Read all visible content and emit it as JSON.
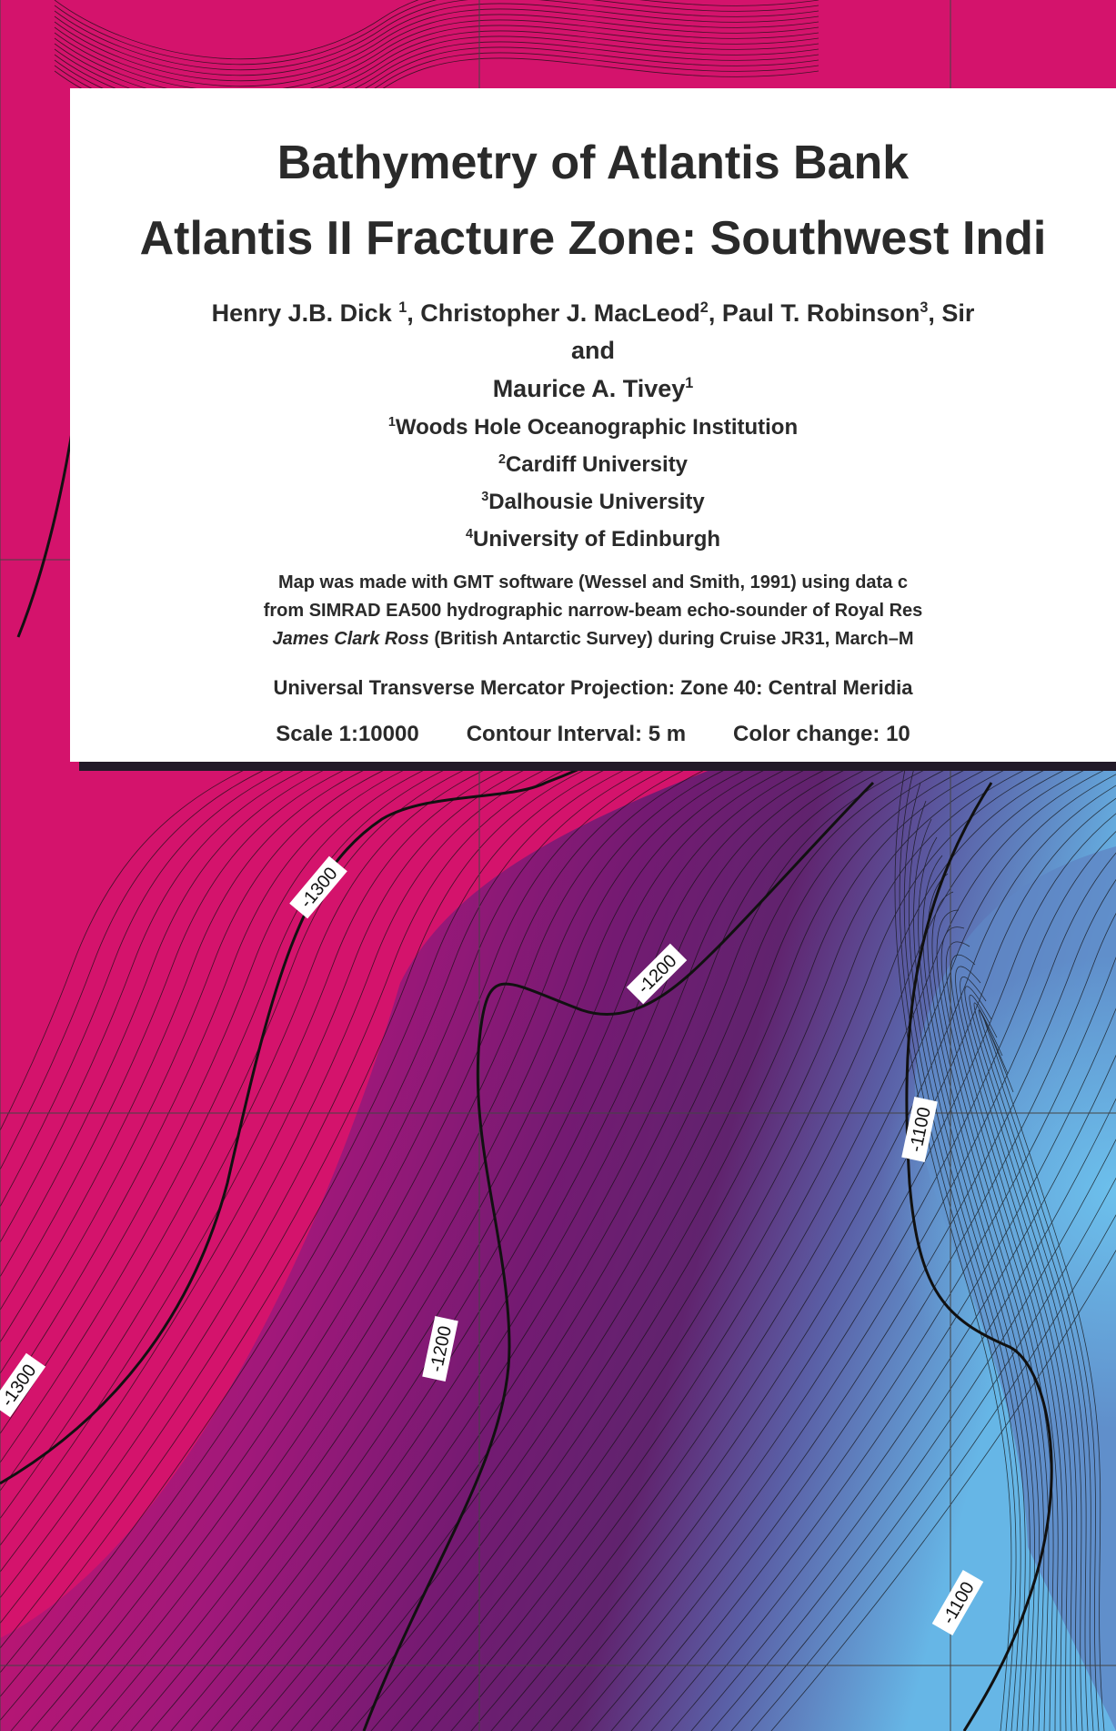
{
  "map": {
    "colors": {
      "shallow": "#66b6e6",
      "mid_shallow": "#5e6fb4",
      "deep_purple": "#5e1a6e",
      "mid": "#8a1777",
      "deep": "#d4136c",
      "contour": "#111111",
      "grid": "#444444"
    },
    "contour_labels": {
      "l1": "-1300",
      "l2": "-1200",
      "l3": "-1100",
      "l4": "-1200",
      "l5": "-1300",
      "l6": "-1100"
    }
  },
  "title_block": {
    "title_line_1": "Bathymetry of Atlantis Bank",
    "title_line_2": "Atlantis II Fracture Zone: Southwest Indi",
    "authors": {
      "a1_name": "Henry J.B. Dick ",
      "a1_sup": "1",
      "a2_name": ", Christopher J. MacLeod",
      "a2_sup": "2",
      "a3_name": ", Paul T. Robinson",
      "a3_sup": "3",
      "a4_name": ", Sir"
    },
    "and": "and",
    "last_author": {
      "name": "Maurice A. Tivey",
      "sup": "1"
    },
    "institutions": [
      {
        "sup": "1",
        "name": "Woods Hole Oceanographic Institution"
      },
      {
        "sup": "2",
        "name": "Cardiff University"
      },
      {
        "sup": "3",
        "name": "Dalhousie University"
      },
      {
        "sup": "4",
        "name": "University of Edinburgh"
      }
    ],
    "credit": {
      "line_1": "Map was made with GMT software (Wessel and Smith, 1991) using data c",
      "line_2": "from SIMRAD EA500 hydrographic narrow-beam echo-sounder of Royal Res",
      "ship": "James Clark Ross",
      "line_3_rest": " (British Antarctic Survey) during Cruise JR31, March–M"
    },
    "projection": "Universal Transverse Mercator Projection:  Zone 40:  Central Meridia",
    "scale": "Scale 1:10000",
    "contour_interval": "Contour Interval: 5 m",
    "color_change": "Color change: 10"
  }
}
